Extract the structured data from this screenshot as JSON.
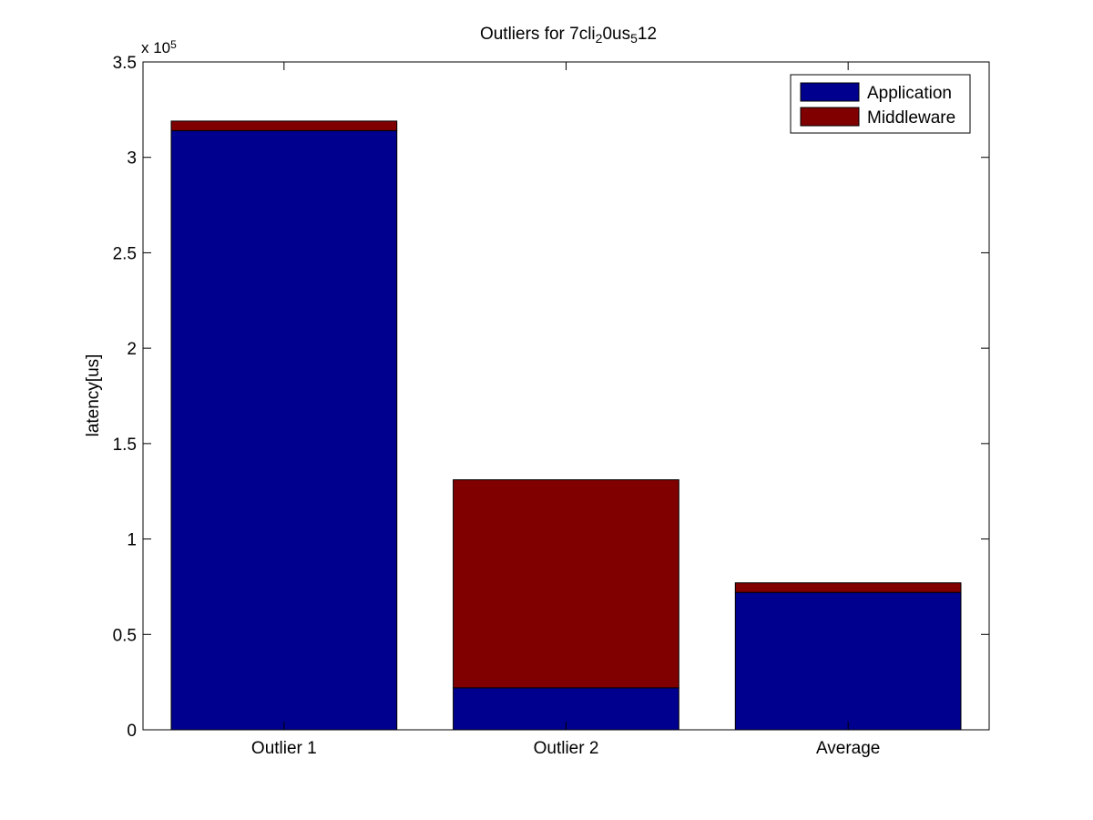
{
  "chart_data": {
    "type": "bar",
    "stacked": true,
    "title": {
      "parts": [
        {
          "text": "Outliers for 7cli"
        },
        {
          "text": "2",
          "sub": true
        },
        {
          "text": "0us"
        },
        {
          "text": "5",
          "sub": true
        },
        {
          "text": "12"
        }
      ]
    },
    "xlabel": "",
    "ylabel": "latency[us]",
    "y_multiplier": {
      "base": "x 10",
      "exponent": "5"
    },
    "categories": [
      "Outlier 1",
      "Outlier 2",
      "Average"
    ],
    "series": [
      {
        "name": "Application",
        "color": "#00008f",
        "values": [
          314000,
          22000,
          72000
        ]
      },
      {
        "name": "Middleware",
        "color": "#800000",
        "values": [
          5000,
          109000,
          5000
        ]
      }
    ],
    "ylim": [
      0,
      350000
    ],
    "yticks": [
      0,
      50000,
      100000,
      150000,
      200000,
      250000,
      300000,
      350000
    ],
    "ytick_labels": [
      "0",
      "0.5",
      "1",
      "1.5",
      "2",
      "2.5",
      "3",
      "3.5"
    ],
    "grid": false,
    "legend_position": "top-right"
  }
}
